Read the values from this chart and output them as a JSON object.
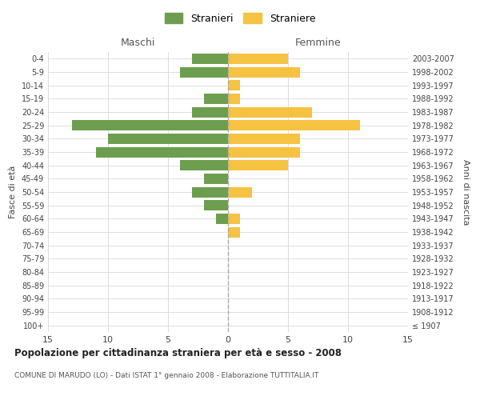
{
  "age_groups": [
    "100+",
    "95-99",
    "90-94",
    "85-89",
    "80-84",
    "75-79",
    "70-74",
    "65-69",
    "60-64",
    "55-59",
    "50-54",
    "45-49",
    "40-44",
    "35-39",
    "30-34",
    "25-29",
    "20-24",
    "15-19",
    "10-14",
    "5-9",
    "0-4"
  ],
  "birth_years": [
    "≤ 1907",
    "1908-1912",
    "1913-1917",
    "1918-1922",
    "1923-1927",
    "1928-1932",
    "1933-1937",
    "1938-1942",
    "1943-1947",
    "1948-1952",
    "1953-1957",
    "1958-1962",
    "1963-1967",
    "1968-1972",
    "1973-1977",
    "1978-1982",
    "1983-1987",
    "1988-1992",
    "1993-1997",
    "1998-2002",
    "2003-2007"
  ],
  "maschi": [
    0,
    0,
    0,
    0,
    0,
    0,
    0,
    0,
    1,
    2,
    3,
    2,
    4,
    11,
    10,
    13,
    3,
    2,
    0,
    4,
    3
  ],
  "femmine": [
    0,
    0,
    0,
    0,
    0,
    0,
    0,
    1,
    1,
    0,
    2,
    0,
    5,
    6,
    6,
    11,
    7,
    1,
    1,
    6,
    5
  ],
  "maschi_color": "#6d9e4f",
  "femmine_color": "#f5c242",
  "title": "Popolazione per cittadinanza straniera per età e sesso - 2008",
  "subtitle": "COMUNE DI MARUDO (LO) - Dati ISTAT 1° gennaio 2008 - Elaborazione TUTTITALIA.IT",
  "xlabel_left": "Maschi",
  "xlabel_right": "Femmine",
  "ylabel_left": "Fasce di età",
  "ylabel_right": "Anni di nascita",
  "legend_male": "Stranieri",
  "legend_female": "Straniere",
  "xlim": 15,
  "background_color": "#ffffff",
  "grid_color": "#d0d0d0",
  "center_line_color": "#aaaaaa"
}
